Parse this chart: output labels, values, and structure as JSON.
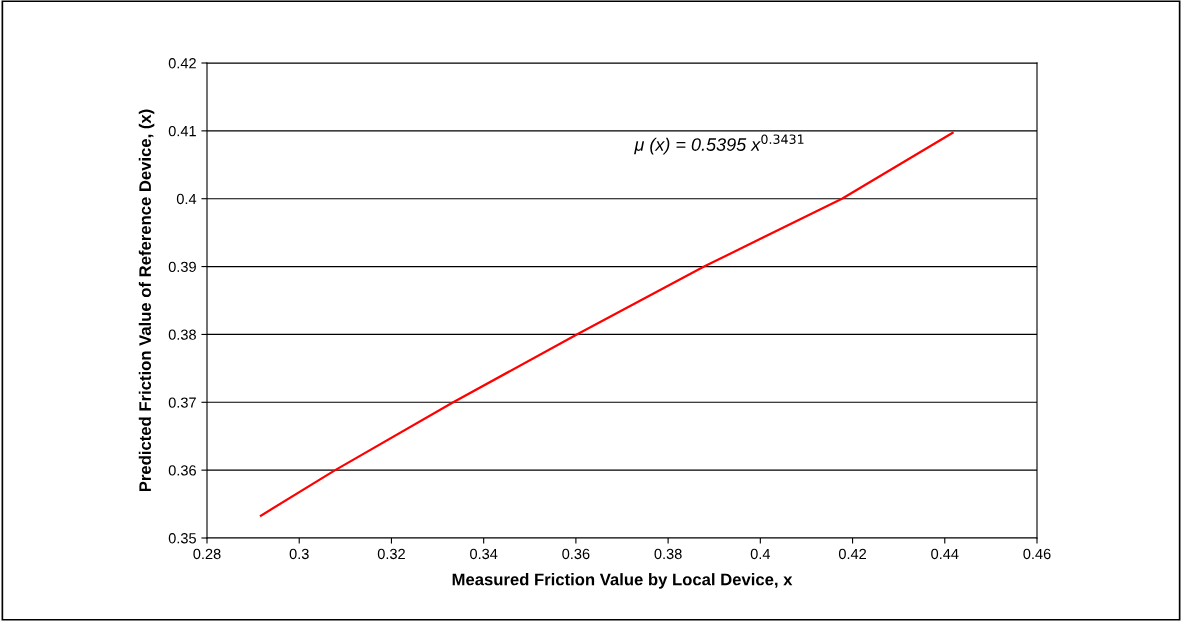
{
  "chart_data": {
    "type": "line",
    "xlabel": "Measured Friction Value by Local Device, x",
    "ylabel": "Predicted Friction Value of Reference Device, (x)",
    "annotations": [
      "μ (x) = 0.5395 x$^{0.3431}$"
    ],
    "series": [
      {
        "color": "#ff0000",
        "x": [
          0.2917,
          0.3078,
          0.3334,
          0.3602,
          0.3878,
          0.4177,
          0.4417
        ],
        "values": [
          0.3533,
          0.36,
          0.37,
          0.38,
          0.39,
          0.4,
          0.4097
        ]
      }
    ],
    "xlim": [
      0.28,
      0.46
    ],
    "xticks": [
      0.28,
      0.3,
      0.32,
      0.34,
      0.36,
      0.38,
      0.4,
      0.42,
      0.44,
      0.46
    ],
    "ylim": [
      0.35,
      0.42
    ],
    "yticks": [
      0.35,
      0.36,
      0.37,
      0.38,
      0.39,
      0.4,
      0.41,
      0.42
    ],
    "grid": "y",
    "marker": "none",
    "line_style": "solid"
  }
}
